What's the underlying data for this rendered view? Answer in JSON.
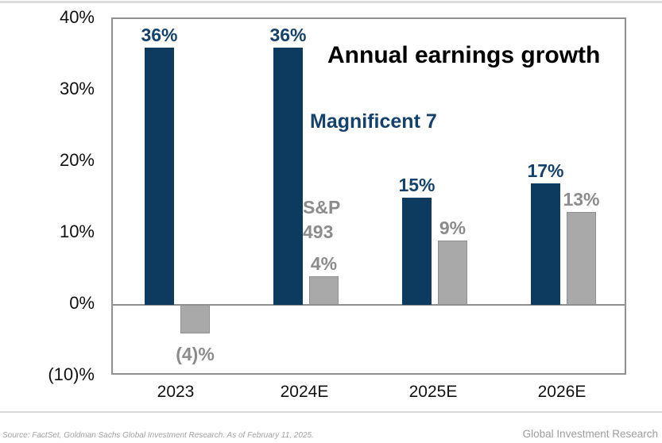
{
  "chart_data": {
    "type": "bar",
    "title": "Annual earnings growth",
    "categories": [
      "2023",
      "2024E",
      "2025E",
      "2026E"
    ],
    "series": [
      {
        "name": "Magnificent 7",
        "values": [
          36,
          36,
          15,
          17
        ],
        "labels": [
          "36%",
          "36%",
          "15%",
          "17%"
        ],
        "color": "#0d3a5f",
        "label_color": "#14426e"
      },
      {
        "name": "S&P 493",
        "values": [
          -4,
          4,
          9,
          13
        ],
        "labels": [
          "(4)%",
          "4%",
          "9%",
          "13%"
        ],
        "color": "#a9a9a9",
        "label_color": "#8c8c8c"
      }
    ],
    "ylim": [
      -10,
      40
    ],
    "yticks": [
      {
        "label": "40%",
        "value": 40
      },
      {
        "label": "30%",
        "value": 30
      },
      {
        "label": "20%",
        "value": 20
      },
      {
        "label": "10%",
        "value": 10
      },
      {
        "label": "0%",
        "value": 0
      },
      {
        "label": "(10)%",
        "value": -10
      }
    ],
    "grid": false,
    "legend_position": "inline-annotations"
  },
  "annotations": {
    "series1_label": "Magnificent 7",
    "series2_label_line1": "S&P",
    "series2_label_line2": "493"
  },
  "footer": {
    "source": "Source: FactSet, Goldman Sachs Global Investment Research. As of February 11, 2025.",
    "brand": "Global Investment Research"
  },
  "colors": {
    "bar_navy": "#0d3a5f",
    "bar_gray": "#a9a9a9",
    "navy_text": "#14426e",
    "gray_text": "#8c8c8c",
    "axis_text": "#111111",
    "plot_border": "#8f8f8f",
    "divider": "#dcdcdc"
  }
}
